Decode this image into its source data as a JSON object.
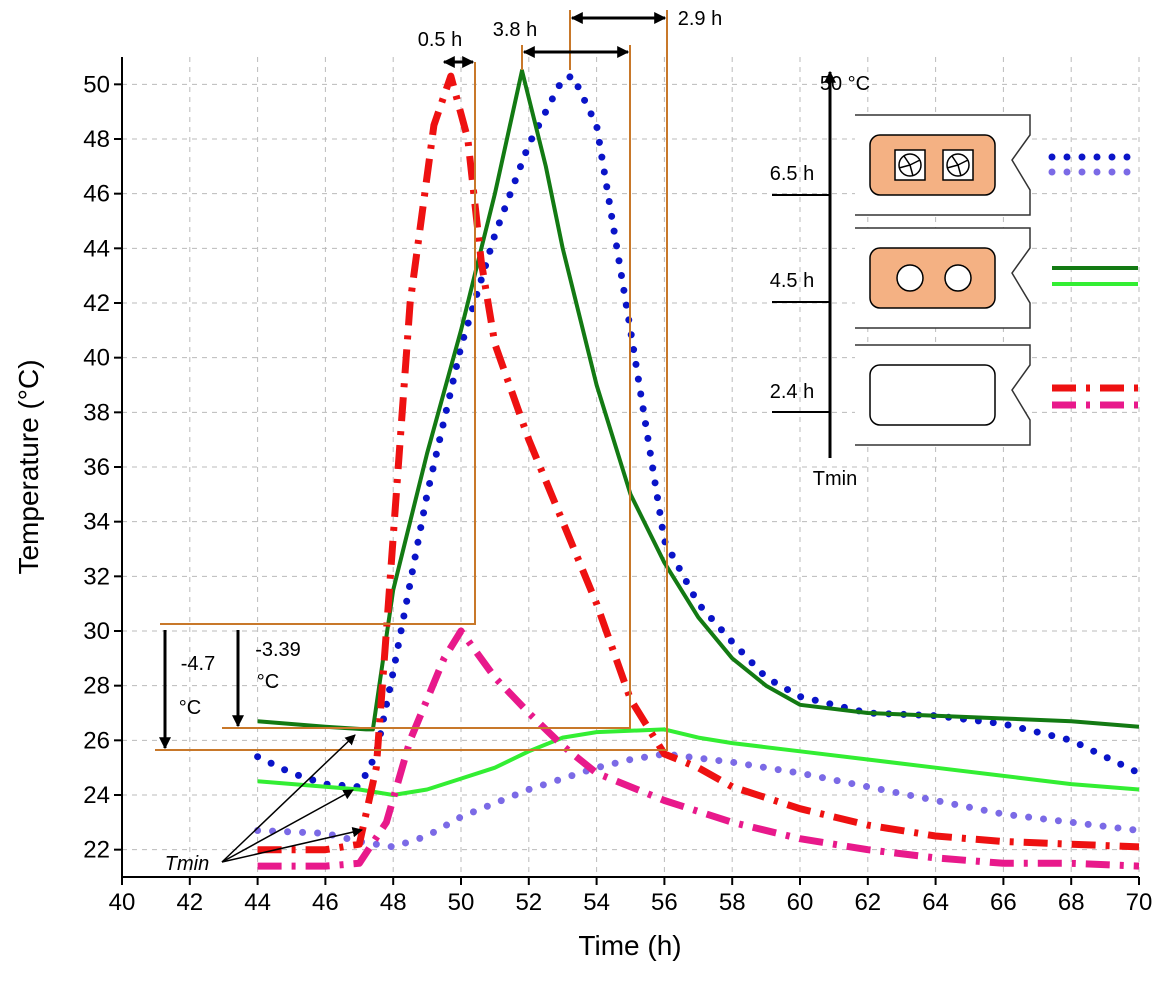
{
  "chart_data": {
    "type": "line",
    "x_label": "Time (h)",
    "y_label": "Temperature (°C)",
    "xlim": [
      40,
      70
    ],
    "ylim": [
      21,
      51
    ],
    "xticks": [
      40,
      42,
      44,
      46,
      48,
      50,
      52,
      54,
      56,
      58,
      60,
      62,
      64,
      66,
      68,
      70
    ],
    "yticks": [
      22,
      24,
      26,
      28,
      30,
      32,
      34,
      36,
      38,
      40,
      42,
      44,
      46,
      48,
      50
    ],
    "grid": true,
    "series": [
      {
        "color": "#0a14c8",
        "dash": "dotted",
        "x": [
          44,
          45,
          46,
          47,
          47.5,
          48,
          49,
          50,
          51,
          52,
          53,
          53.3,
          54,
          55,
          56,
          57,
          58,
          59,
          60,
          62,
          64,
          66,
          68,
          70
        ],
        "values": [
          25.4,
          24.8,
          24.4,
          24.3,
          25.5,
          28.5,
          35,
          40.4,
          44.5,
          47.8,
          50.2,
          50.3,
          48.5,
          41,
          33.3,
          31,
          29.6,
          28.3,
          27.6,
          27,
          26.9,
          26.6,
          26,
          24.8
        ]
      },
      {
        "color": "#7b6ae6",
        "dash": "dotted",
        "x": [
          44,
          46,
          47,
          48,
          49,
          50,
          52,
          54,
          55,
          56,
          58,
          60,
          62,
          64,
          66,
          68,
          70
        ],
        "values": [
          22.7,
          22.6,
          22.3,
          22.1,
          22.5,
          23.2,
          24.2,
          25,
          25.3,
          25.5,
          25.2,
          24.8,
          24.3,
          23.8,
          23.3,
          23,
          22.7
        ]
      },
      {
        "color": "#137a13",
        "dash": "solid",
        "x": [
          44,
          46,
          47.2,
          47.4,
          48,
          49,
          50,
          51,
          51.8,
          52.5,
          53,
          54,
          55,
          56,
          57,
          58,
          59,
          60,
          62,
          64,
          66,
          68,
          70
        ],
        "values": [
          26.7,
          26.5,
          26.4,
          26.4,
          31.5,
          36.5,
          41,
          46,
          50.5,
          47,
          44,
          39,
          35,
          32.5,
          30.5,
          29,
          28,
          27.3,
          27,
          26.9,
          26.8,
          26.7,
          26.5
        ]
      },
      {
        "color": "#33ee33",
        "dash": "solid",
        "x": [
          44,
          46,
          47,
          48,
          49,
          50,
          51,
          52,
          53,
          54,
          56,
          57,
          58,
          60,
          62,
          64,
          66,
          68,
          70
        ],
        "values": [
          24.5,
          24.3,
          24.2,
          24,
          24.2,
          24.6,
          25,
          25.6,
          26.1,
          26.3,
          26.4,
          26.1,
          25.9,
          25.6,
          25.3,
          25,
          24.7,
          24.4,
          24.2
        ]
      },
      {
        "color": "#ee1111",
        "dash": "dashdot",
        "x": [
          44,
          46,
          47,
          47.5,
          47.8,
          48.5,
          49.2,
          49.7,
          50.2,
          50.6,
          51,
          52,
          53,
          54,
          55,
          56,
          57,
          58,
          60,
          62,
          64,
          66,
          68,
          70
        ],
        "values": [
          22,
          22,
          22.2,
          25,
          30,
          42,
          48.5,
          50.3,
          48,
          43.5,
          40.5,
          37,
          34,
          31,
          27.5,
          25.5,
          25,
          24.3,
          23.5,
          22.9,
          22.5,
          22.3,
          22.2,
          22.1
        ]
      },
      {
        "color": "#e8198b",
        "dash": "dashdot",
        "x": [
          44,
          46,
          47,
          47.8,
          48.5,
          49.5,
          50,
          51,
          52,
          53,
          54,
          56,
          58,
          60,
          62,
          64,
          66,
          68,
          70
        ],
        "values": [
          21.4,
          21.4,
          21.5,
          23,
          26,
          29,
          30,
          28.3,
          27,
          25.8,
          24.8,
          23.8,
          23,
          22.4,
          22,
          21.7,
          21.5,
          21.5,
          21.4
        ]
      }
    ],
    "annotations": [
      "0.5 h",
      "3.8 h",
      "2.9 h",
      "50 °C",
      "6.5 h",
      "4.5 h",
      "2.4 h",
      "Tmin",
      "-4.7",
      "°C",
      "-3.39",
      "°C",
      "Tmin"
    ]
  }
}
